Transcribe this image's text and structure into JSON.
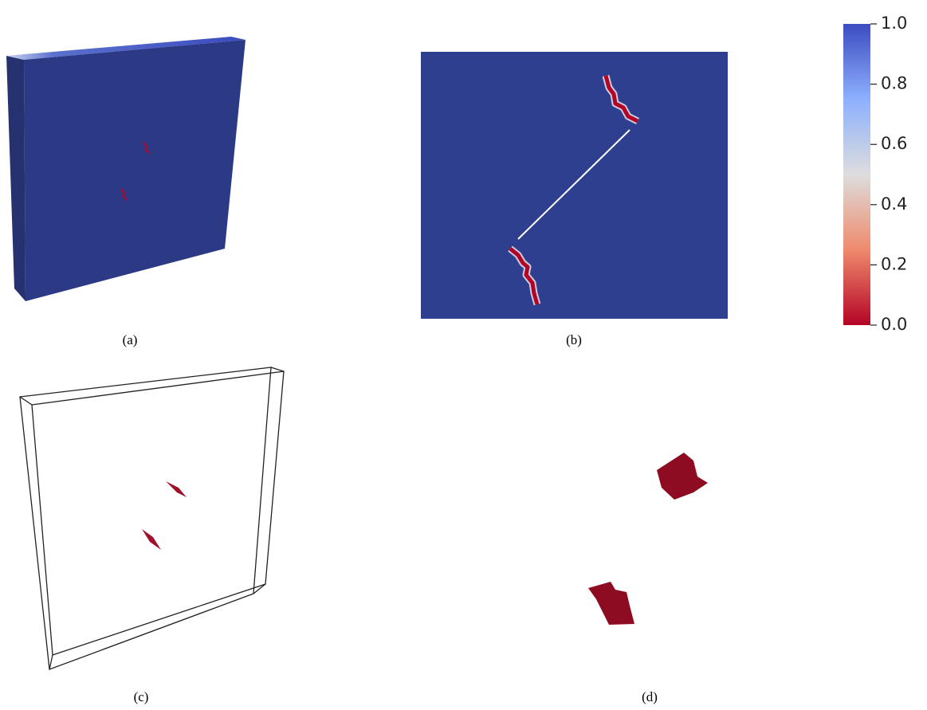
{
  "captions": [
    "(a)",
    "(b)",
    "(c)",
    "(d)"
  ],
  "colorbar": {
    "range": [
      0,
      1
    ],
    "ticks": [
      {
        "value": 1,
        "label": "1.0"
      },
      {
        "value": 0.8,
        "label": "0.8"
      },
      {
        "value": 0.6,
        "label": "0.6"
      },
      {
        "value": 0.4,
        "label": "0.4"
      },
      {
        "value": 0.2,
        "label": "0.2"
      },
      {
        "value": 0,
        "label": "0.0"
      }
    ]
  }
}
